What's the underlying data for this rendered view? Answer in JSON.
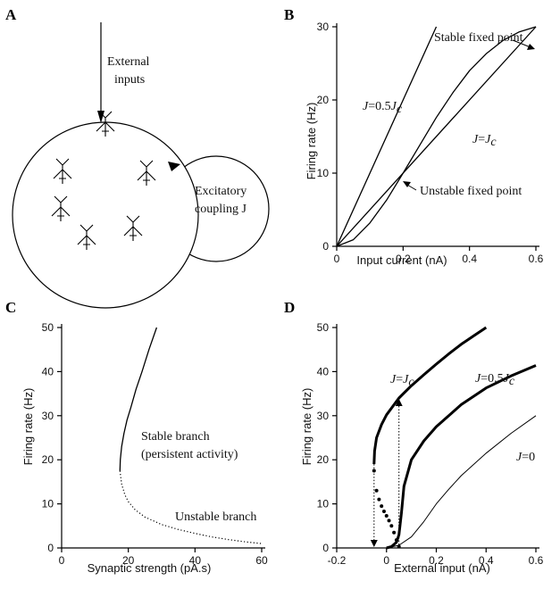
{
  "panels": {
    "A": {
      "letter": "A",
      "arrow_label_line1": "External",
      "arrow_label_line2": "inputs",
      "coupling_label_line1": "Excitatory",
      "coupling_label_line2": "coupling J"
    }
  },
  "chart_data": [
    {
      "id": "B",
      "letter": "B",
      "type": "line",
      "xlabel": "Input current (nA)",
      "ylabel": "Firing rate (Hz)",
      "xlim": [
        0,
        0.6
      ],
      "ylim": [
        0,
        30
      ],
      "xticks": [
        0,
        0.2,
        0.4,
        0.6
      ],
      "xtick_labels": [
        "0",
        "0.2",
        "0.4",
        "0.6"
      ],
      "yticks": [
        0,
        10,
        20,
        30
      ],
      "ytick_labels": [
        "0",
        "10",
        "20",
        "30"
      ],
      "series": [
        {
          "name": "J=0.5Jc",
          "x": [
            0,
            0.3
          ],
          "y": [
            0,
            30
          ]
        },
        {
          "name": "J=Jc",
          "x": [
            0,
            0.6
          ],
          "y": [
            0,
            30
          ]
        },
        {
          "x": [
            0,
            0.05,
            0.1,
            0.15,
            0.2,
            0.25,
            0.3,
            0.35,
            0.4,
            0.45,
            0.5,
            0.55,
            0.6
          ],
          "y": [
            0,
            0.9,
            3.2,
            6.3,
            10,
            13.8,
            17.6,
            21,
            24,
            26.3,
            28.1,
            29.3,
            30
          ]
        }
      ],
      "annotations": {
        "stable": "Stable fixed point",
        "unstable": "Unstable fixed point",
        "label_half_pre": "J",
        "label_half_mid": "=0.5",
        "label_half_J": "J",
        "label_half_sub": "c",
        "label_full_pre": "J",
        "label_full_mid": "=",
        "label_full_J": "J",
        "label_full_sub": "c"
      }
    },
    {
      "id": "C",
      "letter": "C",
      "type": "line",
      "xlabel": "Synaptic strength (pA.s)",
      "ylabel": "Firing rate (Hz)",
      "xlim": [
        0,
        60
      ],
      "ylim": [
        0,
        50
      ],
      "xticks": [
        0,
        20,
        40,
        60
      ],
      "xtick_labels": [
        "0",
        "20",
        "40",
        "60"
      ],
      "yticks": [
        0,
        10,
        20,
        30,
        40,
        50
      ],
      "ytick_labels": [
        "0",
        "10",
        "20",
        "30",
        "40",
        "50"
      ],
      "series": [
        {
          "style": "solid",
          "x": [
            17.5,
            17.6,
            18.0,
            18.7,
            19.6,
            20.8,
            22.3,
            24.1,
            26.2,
            28.5
          ],
          "y": [
            17.5,
            20,
            23,
            26,
            29,
            32,
            36,
            40,
            45,
            50
          ]
        },
        {
          "style": "dotted",
          "x": [
            17.5,
            18,
            19,
            20,
            22,
            25,
            30,
            35,
            40,
            45,
            50,
            55,
            60
          ],
          "y": [
            17.5,
            14.5,
            12,
            10.5,
            8.7,
            7.0,
            5.3,
            4.2,
            3.3,
            2.5,
            1.9,
            1.4,
            1.0
          ]
        }
      ],
      "annotations": {
        "stable_line1": "Stable branch",
        "stable_line2": "(persistent activity)",
        "unstable": "Unstable branch"
      }
    },
    {
      "id": "D",
      "letter": "D",
      "type": "line",
      "xlabel": "External input (nA)",
      "ylabel": "Firing rate (Hz)",
      "xlim": [
        -0.2,
        0.6
      ],
      "ylim": [
        0,
        50
      ],
      "xticks": [
        -0.2,
        0,
        0.2,
        0.4,
        0.6
      ],
      "xtick_labels": [
        "-0.2",
        "0",
        "0.2",
        "0.4",
        "0.6"
      ],
      "yticks": [
        0,
        10,
        20,
        30,
        40,
        50
      ],
      "ytick_labels": [
        "0",
        "10",
        "20",
        "30",
        "40",
        "50"
      ],
      "series": [
        {
          "name": "J=Jc",
          "style": "thick",
          "x": [
            -0.05,
            -0.048,
            -0.04,
            -0.02,
            0,
            0.05,
            0.1,
            0.15,
            0.2,
            0.25,
            0.3,
            0.35,
            0.4
          ],
          "y": [
            19,
            22,
            25,
            28,
            30.2,
            34,
            36.8,
            39.3,
            41.7,
            44,
            46.2,
            48.1,
            50
          ]
        },
        {
          "name": "J=Jc",
          "style": "dots",
          "x": [
            -0.05,
            -0.04,
            -0.03,
            -0.02,
            -0.01,
            0,
            0.01,
            0.02,
            0.03,
            0.04,
            0.05
          ],
          "y": [
            17.5,
            13,
            11,
            9.5,
            8.3,
            7.3,
            6.2,
            5,
            3.5,
            1.8,
            0.3
          ]
        },
        {
          "name": "J=0.5Jc",
          "style": "thick",
          "x": [
            0,
            0.02,
            0.04,
            0.05,
            0.06,
            0.07,
            0.1,
            0.15,
            0.2,
            0.3,
            0.4,
            0.5,
            0.6
          ],
          "y": [
            0,
            0.3,
            1.3,
            3,
            8,
            14,
            20,
            24.3,
            27.5,
            32.5,
            36.3,
            39,
            41.4
          ]
        },
        {
          "name": "J=0",
          "style": "thin",
          "x": [
            0,
            0.05,
            0.1,
            0.15,
            0.2,
            0.25,
            0.3,
            0.4,
            0.5,
            0.6
          ],
          "y": [
            0,
            0.6,
            2.5,
            6,
            10,
            13.3,
            16.4,
            21.5,
            26,
            30
          ]
        }
      ],
      "annotations": {
        "label_full_pre": "J",
        "label_full_mid": "=",
        "label_full_J": "J",
        "label_full_sub": "c",
        "label_half_pre": "J",
        "label_half_mid": "=0.5",
        "label_half_J": "J",
        "label_half_sub": "c",
        "label_zero_pre": "J",
        "label_zero_mid": "=0"
      }
    }
  ]
}
